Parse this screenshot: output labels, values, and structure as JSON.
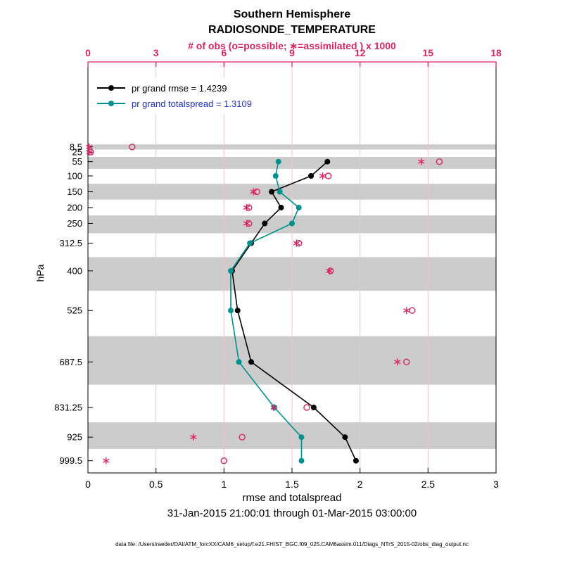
{
  "colors": {
    "obs": "#d92565",
    "grid": "#f3bfd2",
    "band": "#cccccc",
    "axis": "#000000",
    "background": "#ffffff"
  },
  "chart_data": {
    "type": "line",
    "title": "Southern Hemisphere",
    "subtitle": "RADIOSONDE_TEMPERATURE",
    "top_axis_label": "# of obs (o=possible; ∗=assimilated ) x 1000",
    "xlabel": "rmse and totalspread",
    "ylabel": "hPa",
    "timespan": "31-Jan-2015 21:00:01 through 01-Mar-2015 03:00:00",
    "data_file": "data file: /Users/raeder/DAI/ATM_forcXX/CAM6_setup/f.e21.FHIST_BGC.f09_025.CAM6assim.011/Diags_NTrS_2015-02/obs_diag_output.nc",
    "legend_position": "top-left-inside",
    "grid": "vertical-pink-only",
    "x_bottom": {
      "min": 0,
      "max": 3,
      "ticks": [
        0,
        0.5,
        1,
        1.5,
        2,
        2.5,
        3
      ],
      "tick_labels": [
        "0",
        "0.5",
        "1",
        "1.5",
        "2",
        "2.5",
        "3"
      ]
    },
    "x_top": {
      "min": 0,
      "max": 18,
      "ticks": [
        0,
        3,
        6,
        9,
        12,
        15,
        18
      ],
      "tick_labels": [
        "0",
        "3",
        "6",
        "9",
        "12",
        "15",
        "18"
      ]
    },
    "y_axis_range": [
      -260,
      1038
    ],
    "y_levels_hpa": [
      8.5,
      25,
      55,
      100,
      150,
      200,
      250,
      312.5,
      400,
      525,
      687.5,
      831.25,
      925,
      999.5
    ],
    "y_tick_labels": [
      "8.5",
      "25",
      "55",
      "100",
      "150",
      "200",
      "250",
      "312.5",
      "400",
      "525",
      "687.5",
      "831.25",
      "925",
      "999.5"
    ],
    "shaded_bands_hpa": [
      [
        0.5,
        16.75
      ],
      [
        40,
        77.5
      ],
      [
        125,
        175
      ],
      [
        225,
        281.25
      ],
      [
        356.25,
        462.5
      ],
      [
        606.25,
        759.375
      ],
      [
        878.125,
        962.25
      ]
    ],
    "series": [
      {
        "name": "pr grand rmse = 1.4239",
        "color": "#000000",
        "text_color": "#000000",
        "levels": [
          55,
          100,
          150,
          200,
          250,
          312.5,
          400,
          525,
          687.5,
          831.25,
          925,
          999.5
        ],
        "values": [
          1.76,
          1.64,
          1.35,
          1.42,
          1.3,
          1.2,
          1.06,
          1.1,
          1.2,
          1.66,
          1.89,
          1.97
        ]
      },
      {
        "name": "pr grand totalspread = 1.3109",
        "color": "#00918f",
        "text_color": "#2233bb",
        "levels": [
          55,
          100,
          150,
          200,
          250,
          312.5,
          400,
          525,
          687.5,
          831.25,
          925,
          999.5
        ],
        "values": [
          1.4,
          1.38,
          1.41,
          1.55,
          1.5,
          1.19,
          1.05,
          1.05,
          1.11,
          1.37,
          1.57,
          1.57
        ]
      }
    ],
    "obs_counts_thousands": {
      "levels": [
        8.5,
        25,
        55,
        100,
        150,
        200,
        250,
        312.5,
        400,
        525,
        687.5,
        831.25,
        925,
        999.5
      ],
      "possible": [
        1.95,
        0.12,
        15.5,
        10.6,
        7.45,
        7.1,
        7.1,
        9.3,
        10.7,
        14.3,
        14.05,
        9.65,
        6.8,
        6.0
      ],
      "assimilated": [
        0.05,
        0.06,
        14.7,
        10.35,
        7.3,
        7.0,
        7.0,
        9.2,
        10.65,
        14.05,
        13.65,
        8.2,
        4.65,
        0.8
      ]
    }
  }
}
